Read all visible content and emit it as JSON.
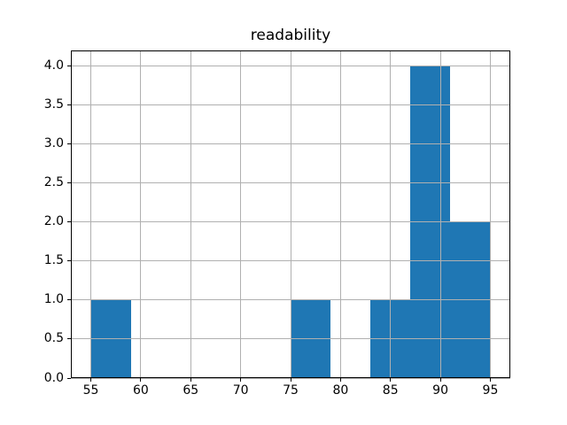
{
  "chart_data": {
    "type": "histogram",
    "title": "readability",
    "xlabel": "",
    "ylabel": "",
    "bin_edges": [
      55,
      59,
      63,
      67,
      71,
      75,
      79,
      83,
      87,
      91,
      95
    ],
    "counts": [
      1,
      0,
      0,
      0,
      0,
      1,
      0,
      1,
      4,
      2
    ],
    "x_ticks": [
      {
        "value": 55,
        "label": "55"
      },
      {
        "value": 60,
        "label": "60"
      },
      {
        "value": 65,
        "label": "65"
      },
      {
        "value": 70,
        "label": "70"
      },
      {
        "value": 75,
        "label": "75"
      },
      {
        "value": 80,
        "label": "80"
      },
      {
        "value": 85,
        "label": "85"
      },
      {
        "value": 90,
        "label": "90"
      },
      {
        "value": 95,
        "label": "95"
      }
    ],
    "y_ticks": [
      {
        "value": 0.0,
        "label": "0.0"
      },
      {
        "value": 0.5,
        "label": "0.5"
      },
      {
        "value": 1.0,
        "label": "1.0"
      },
      {
        "value": 1.5,
        "label": "1.5"
      },
      {
        "value": 2.0,
        "label": "2.0"
      },
      {
        "value": 2.5,
        "label": "2.5"
      },
      {
        "value": 3.0,
        "label": "3.0"
      },
      {
        "value": 3.5,
        "label": "3.5"
      },
      {
        "value": 4.0,
        "label": "4.0"
      }
    ],
    "xlim": [
      53,
      97
    ],
    "ylim": [
      0,
      4.2
    ],
    "grid": true,
    "grid_on_top": true,
    "legend": null,
    "colors": {
      "bar": "#1f77b4",
      "grid": "#b0b0b0",
      "axis": "#000000",
      "text": "#000000",
      "background": "#ffffff"
    }
  }
}
